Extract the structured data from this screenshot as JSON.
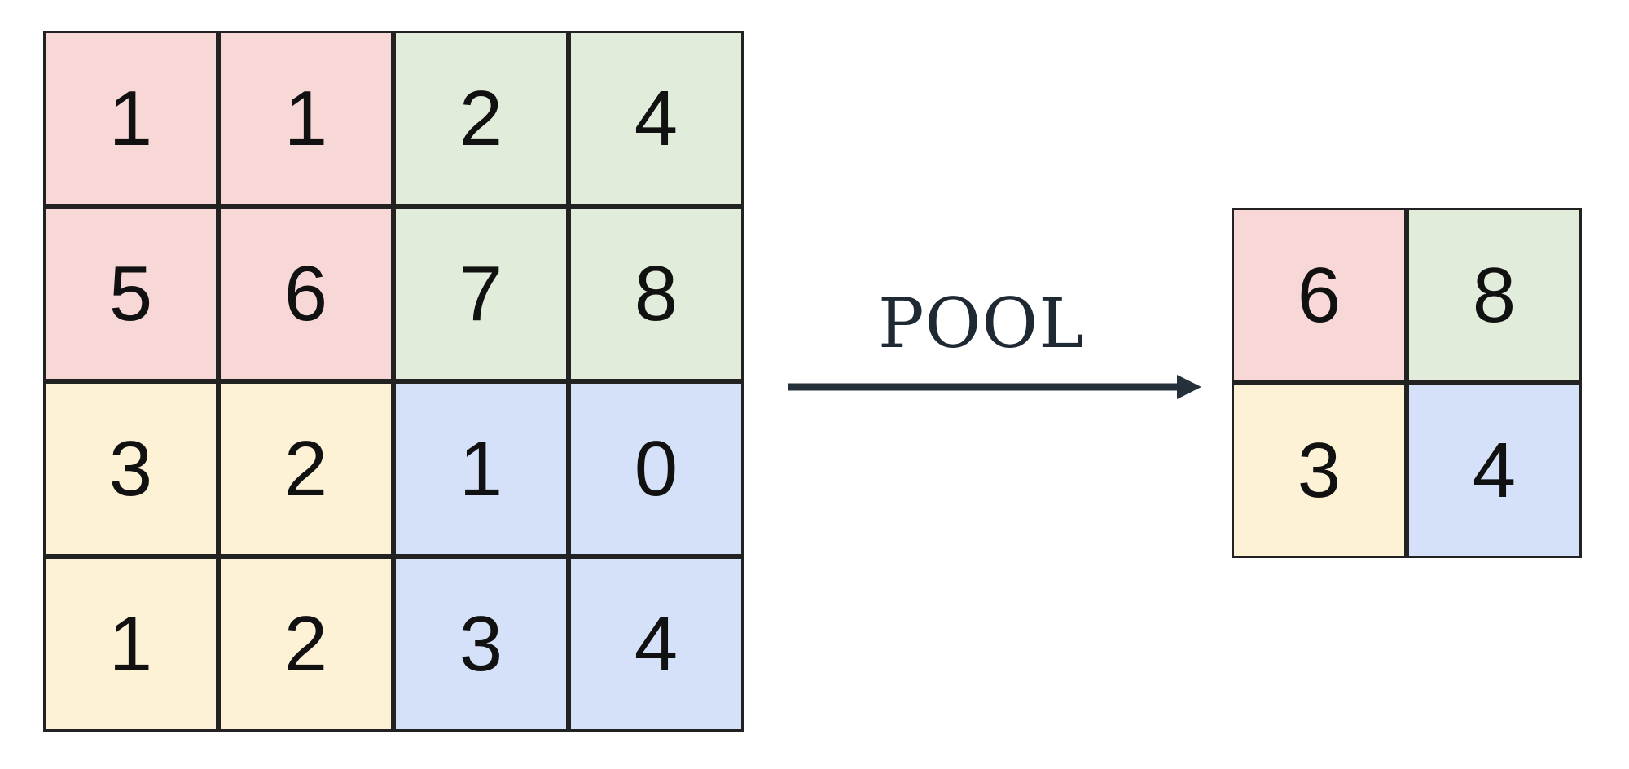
{
  "input_grid": {
    "rows": [
      [
        "1",
        "1",
        "2",
        "4"
      ],
      [
        "5",
        "6",
        "7",
        "8"
      ],
      [
        "3",
        "2",
        "1",
        "0"
      ],
      [
        "1",
        "2",
        "3",
        "4"
      ]
    ]
  },
  "output_grid": {
    "rows": [
      [
        "6",
        "8"
      ],
      [
        "3",
        "4"
      ]
    ]
  },
  "arrow_label": "POOL",
  "colors": {
    "top_left": "#f8d7d7",
    "top_right": "#e1ecda",
    "bottom_left": "#fdf2d6",
    "bottom_right": "#d4e1f8",
    "border": "#222222",
    "arrow": "#25303b"
  }
}
